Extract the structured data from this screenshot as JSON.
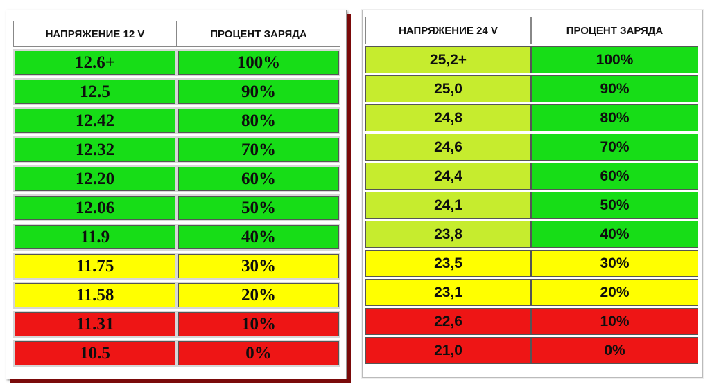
{
  "tables": [
    {
      "headers": [
        "НАПРЯЖЕНИЕ 12 V",
        "ПРОЦЕНТ ЗАРЯДА"
      ],
      "rows": [
        {
          "voltage": "12.6+",
          "percent": "100%",
          "color": "#17dd17",
          "pcolor": "#17dd17"
        },
        {
          "voltage": "12.5",
          "percent": "90%",
          "color": "#17dd17",
          "pcolor": "#17dd17"
        },
        {
          "voltage": "12.42",
          "percent": "80%",
          "color": "#17dd17",
          "pcolor": "#17dd17"
        },
        {
          "voltage": "12.32",
          "percent": "70%",
          "color": "#17dd17",
          "pcolor": "#17dd17"
        },
        {
          "voltage": "12.20",
          "percent": "60%",
          "color": "#17dd17",
          "pcolor": "#17dd17"
        },
        {
          "voltage": "12.06",
          "percent": "50%",
          "color": "#17dd17",
          "pcolor": "#17dd17"
        },
        {
          "voltage": "11.9",
          "percent": "40%",
          "color": "#17dd17",
          "pcolor": "#17dd17"
        },
        {
          "voltage": "11.75",
          "percent": "30%",
          "color": "#ffff00",
          "pcolor": "#ffff00"
        },
        {
          "voltage": "11.58",
          "percent": "20%",
          "color": "#ffff00",
          "pcolor": "#ffff00"
        },
        {
          "voltage": "11.31",
          "percent": "10%",
          "color": "#ee1515",
          "pcolor": "#ee1515"
        },
        {
          "voltage": "10.5",
          "percent": "0%",
          "color": "#ee1515",
          "pcolor": "#ee1515"
        }
      ]
    },
    {
      "headers": [
        "НАПРЯЖЕНИЕ 24 V",
        "ПРОЦЕНТ ЗАРЯДА"
      ],
      "rows": [
        {
          "voltage": "25,2+",
          "percent": "100%",
          "color": "#c6ec2e",
          "pcolor": "#17dd17"
        },
        {
          "voltage": "25,0",
          "percent": "90%",
          "color": "#c6ec2e",
          "pcolor": "#17dd17"
        },
        {
          "voltage": "24,8",
          "percent": "80%",
          "color": "#c6ec2e",
          "pcolor": "#17dd17"
        },
        {
          "voltage": "24,6",
          "percent": "70%",
          "color": "#c6ec2e",
          "pcolor": "#17dd17"
        },
        {
          "voltage": "24,4",
          "percent": "60%",
          "color": "#c6ec2e",
          "pcolor": "#17dd17"
        },
        {
          "voltage": "24,1",
          "percent": "50%",
          "color": "#c6ec2e",
          "pcolor": "#17dd17"
        },
        {
          "voltage": "23,8",
          "percent": "40%",
          "color": "#c6ec2e",
          "pcolor": "#17dd17"
        },
        {
          "voltage": "23,5",
          "percent": "30%",
          "color": "#ffff00",
          "pcolor": "#ffff00"
        },
        {
          "voltage": "23,1",
          "percent": "20%",
          "color": "#ffff00",
          "pcolor": "#ffff00"
        },
        {
          "voltage": "22,6",
          "percent": "10%",
          "color": "#ee1515",
          "pcolor": "#ee1515"
        },
        {
          "voltage": "21,0",
          "percent": "0%",
          "color": "#ee1515",
          "pcolor": "#ee1515"
        }
      ]
    }
  ]
}
